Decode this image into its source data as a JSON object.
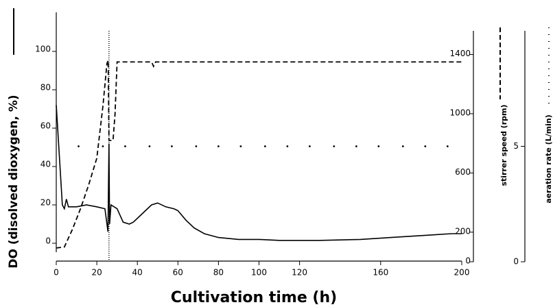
{
  "chart_data": {
    "type": "line",
    "xlabel": "Cultivation time (h)",
    "ylabel": "DO (disolved dioxygen, %)",
    "y2label": "stirrer speed (rpm)",
    "y3label": "aeration rate (L/min)",
    "xlim": [
      0,
      200
    ],
    "xticks": [
      0,
      20,
      40,
      60,
      80,
      100,
      120,
      160,
      200
    ],
    "ylim": [
      -5,
      120
    ],
    "yticks": [
      0,
      20,
      40,
      60,
      80,
      100
    ],
    "y2lim": [
      0,
      1560
    ],
    "y2ticks": [
      0,
      200,
      600,
      1000,
      1400
    ],
    "y3lim": [
      0,
      10
    ],
    "y3ticks": [
      0,
      5
    ],
    "vline_x": 26,
    "series": [
      {
        "name": "DO",
        "color": "#000000",
        "style": "solid",
        "axis": "y",
        "x": [
          0,
          3,
          4,
          5,
          6,
          10,
          15,
          20,
          24,
          25.5,
          26,
          26.3,
          27,
          30,
          33,
          36,
          38,
          42,
          47,
          50,
          54,
          58,
          60,
          64,
          68,
          73,
          80,
          90,
          100,
          110,
          130,
          150,
          165,
          180,
          195,
          200
        ],
        "values": [
          72,
          20,
          18,
          23,
          19,
          19,
          20,
          19,
          18,
          6,
          52,
          10,
          20,
          18,
          11,
          10,
          11,
          15,
          20,
          21,
          19,
          18,
          17,
          12,
          8,
          5,
          3,
          2,
          2,
          1.5,
          1.5,
          2,
          3,
          4,
          5,
          5
        ]
      },
      {
        "name": "stirrer speed",
        "color": "#000000",
        "style": "dashed",
        "axis": "y2",
        "x": [
          0,
          4,
          8,
          12,
          16,
          20,
          23,
          25,
          25.6,
          26,
          28,
          29,
          30,
          47,
          48,
          49,
          200
        ],
        "values": [
          93,
          100,
          220,
          360,
          520,
          700,
          1050,
          1340,
          1360,
          820,
          820,
          1000,
          1350,
          1350,
          1320,
          1350,
          1350
        ]
      },
      {
        "name": "aeration rate",
        "color": "#000000",
        "style": "dotted",
        "axis": "y3",
        "x": [
          11,
          23,
          34,
          46,
          57,
          69,
          80,
          91,
          103,
          114,
          125,
          137,
          148,
          159,
          171,
          182,
          193
        ],
        "values": [
          5,
          5,
          5,
          5,
          5,
          5,
          5,
          5,
          5,
          5,
          5,
          5,
          5,
          5,
          5,
          5,
          5
        ]
      }
    ]
  }
}
